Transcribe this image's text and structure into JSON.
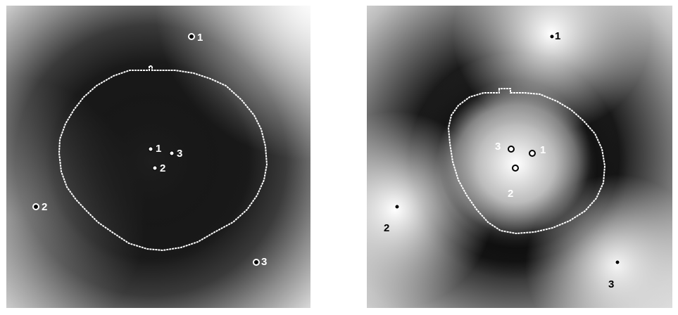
{
  "panels": [
    {
      "id": "left",
      "background": "dark",
      "colors": {
        "field_center": "#151515",
        "field_edge": "#dadada",
        "contour": "#ffffff"
      },
      "markers": [
        {
          "label": "1",
          "style": "hollow",
          "group": "outer"
        },
        {
          "label": "2",
          "style": "hollow",
          "group": "outer"
        },
        {
          "label": "3",
          "style": "hollow",
          "group": "outer"
        },
        {
          "label": "1",
          "style": "filled",
          "group": "inner"
        },
        {
          "label": "2",
          "style": "filled",
          "group": "inner"
        },
        {
          "label": "3",
          "style": "filled",
          "group": "inner"
        }
      ]
    },
    {
      "id": "right",
      "background": "light-center",
      "colors": {
        "field_center": "#ffffff",
        "field_dark": "#0d0d0d",
        "field_edge": "#f2f2f2",
        "contour": "#ffffff"
      },
      "markers": [
        {
          "label": "1",
          "style": "filled",
          "group": "outer"
        },
        {
          "label": "2",
          "style": "filled",
          "group": "outer"
        },
        {
          "label": "3",
          "style": "filled",
          "group": "outer"
        },
        {
          "label": "1",
          "style": "hollow",
          "group": "inner"
        },
        {
          "label": "2",
          "style": "hollow",
          "group": "inner"
        },
        {
          "label": "3",
          "style": "hollow",
          "group": "inner"
        }
      ]
    }
  ]
}
